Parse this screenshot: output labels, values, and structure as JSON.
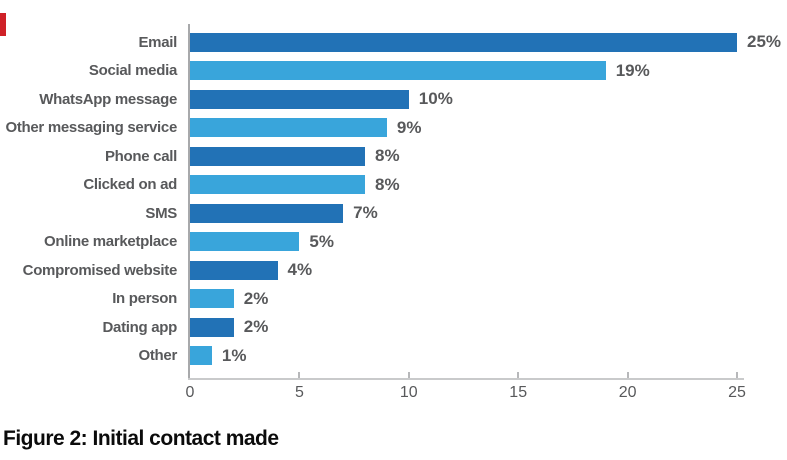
{
  "chart_data": {
    "type": "bar",
    "orientation": "horizontal",
    "caption": "Figure 2: Initial contact made",
    "categories": [
      "Email",
      "Social media",
      "WhatsApp message",
      "Other messaging service",
      "Phone call",
      "Clicked on ad",
      "SMS",
      "Online marketplace",
      "Compromised website",
      "In person",
      "Dating app",
      "Other"
    ],
    "values": [
      25,
      19,
      10,
      9,
      8,
      8,
      7,
      5,
      4,
      2,
      2,
      1
    ],
    "value_labels": [
      "25%",
      "19%",
      "10%",
      "9%",
      "8%",
      "8%",
      "7%",
      "5%",
      "4%",
      "2%",
      "2%",
      "1%"
    ],
    "x_ticks": [
      0,
      5,
      10,
      15,
      20,
      25
    ],
    "xlim": [
      0,
      25
    ],
    "grid": false,
    "legend": "none",
    "xlabel": "",
    "ylabel": ""
  },
  "colors": {
    "bar_dark": "#2272b6",
    "bar_light": "#39a5db",
    "label_gray": "#58595b",
    "axis_gray": "#c9cacb",
    "red_mark": "#cf2128"
  }
}
